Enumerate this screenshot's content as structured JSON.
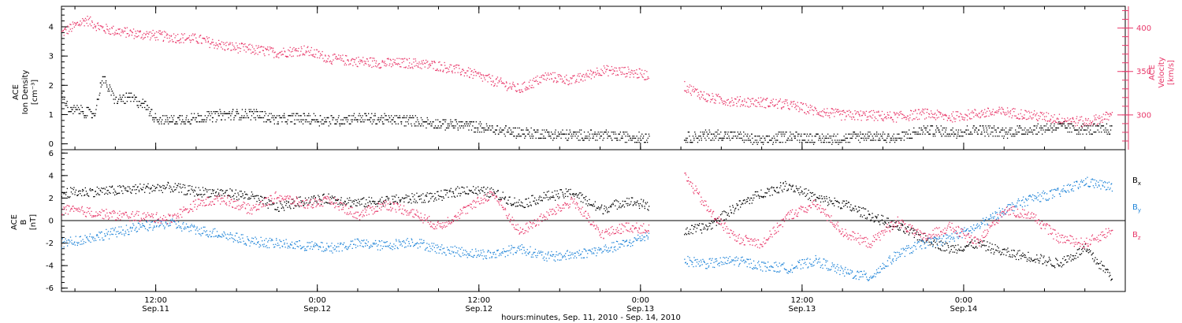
{
  "colors": {
    "black": "#000000",
    "red": "#e8386a",
    "blue": "#1f84d8"
  },
  "xaxis": {
    "label": "hours:minutes, Sep. 11, 2010 - Sep. 14, 2010",
    "ticks": [
      {
        "time": "12:00",
        "date": "Sep.11"
      },
      {
        "time": "0:00",
        "date": "Sep.12"
      },
      {
        "time": "12:00",
        "date": "Sep.12"
      },
      {
        "time": "0:00",
        "date": "Sep.13"
      },
      {
        "time": "12:00",
        "date": "Sep.13"
      },
      {
        "time": "0:00",
        "date": "Sep.14"
      }
    ]
  },
  "chart_data": [
    {
      "type": "scatter",
      "xrange": [
        "2010-09-11 05:00",
        "2010-09-14 12:00"
      ],
      "left_axis": {
        "label_line1": "ACE",
        "label_line2": "Ion Density",
        "label_line3": "[cm⁻³]",
        "ylim": [
          -0.2,
          4.7
        ],
        "ticks": [
          "0",
          "1",
          "2",
          "3",
          "4"
        ]
      },
      "right_axis": {
        "label_line1": "ACE",
        "label_line2": "Velocity",
        "label_line3": "[km/s]",
        "ylim": [
          260,
          425
        ],
        "ticks": [
          "300",
          "350",
          "400"
        ]
      },
      "series": [
        {
          "name": "",
          "axis": "left",
          "color": "#000000",
          "x_hours": [
            0,
            0.6,
            1.2,
            1.8,
            2.4,
            3,
            4,
            5,
            6,
            7,
            8,
            10,
            12,
            14,
            16,
            18,
            20,
            22,
            24,
            26,
            28,
            30,
            32,
            34,
            36,
            38,
            40,
            42,
            44,
            46,
            48,
            50,
            52,
            54,
            56,
            58,
            60,
            62,
            64,
            66,
            68,
            70,
            72,
            74,
            76,
            78
          ],
          "values": [
            1.8,
            1.1,
            1.2,
            1.1,
            1.0,
            2.3,
            1.5,
            1.6,
            1.4,
            0.9,
            0.8,
            0.9,
            1.0,
            1.05,
            0.85,
            0.9,
            0.8,
            0.9,
            0.85,
            0.8,
            0.7,
            0.65,
            0.5,
            0.4,
            0.35,
            0.3,
            0.3,
            0.25,
            0.25,
            0.2,
            0.3,
            0.3,
            0.1,
            0.3,
            0.2,
            0.2,
            0.3,
            0.2,
            0.5,
            0.4,
            0.5,
            0.4,
            0.5,
            0.6,
            0.5,
            0.5
          ]
        },
        {
          "name": "",
          "axis": "right",
          "color": "#e8386a",
          "x_hours": [
            0,
            0.6,
            1.2,
            1.8,
            2.4,
            3,
            4,
            5,
            6,
            7,
            8,
            10,
            12,
            14,
            16,
            18,
            20,
            22,
            24,
            26,
            28,
            30,
            32,
            34,
            36,
            38,
            40,
            42,
            44,
            46,
            48,
            50,
            52,
            54,
            56,
            58,
            60,
            62,
            64,
            66,
            68,
            70,
            72,
            74,
            76,
            78
          ],
          "values": [
            395,
            400,
            405,
            410,
            405,
            400,
            397,
            395,
            393,
            392,
            390,
            388,
            380,
            376,
            372,
            375,
            365,
            362,
            360,
            360,
            357,
            350,
            340,
            330,
            345,
            340,
            352,
            350,
            345,
            335,
            320,
            316,
            315,
            312,
            305,
            300,
            300,
            298,
            302,
            298,
            302,
            304,
            300,
            296,
            292,
            300
          ]
        }
      ],
      "gaps": [
        {
          "from_hour": 43.6,
          "to_hour": 46.2
        }
      ]
    },
    {
      "type": "scatter",
      "xrange": [
        "2010-09-11 05:00",
        "2010-09-14 12:00"
      ],
      "left_axis": {
        "label_line1": "ACE",
        "label_line2": "B",
        "label_line3": "[nT]",
        "ylim": [
          -6.3,
          6.3
        ],
        "ticks": [
          "-6",
          "-4",
          "-2",
          "0",
          "2",
          "4",
          "6"
        ]
      },
      "legend": {
        "placement": "right",
        "entries": [
          {
            "label": "B",
            "sub": "x",
            "color": "#000000"
          },
          {
            "label": "B",
            "sub": "y",
            "color": "#1f84d8"
          },
          {
            "label": "B",
            "sub": "z",
            "color": "#e8386a"
          }
        ]
      },
      "zero_line": true,
      "series": [
        {
          "name": "Bx",
          "color": "#000000",
          "x_hours": [
            0,
            2,
            4,
            6,
            8,
            10,
            12,
            14,
            16,
            18,
            20,
            22,
            24,
            26,
            28,
            30,
            32,
            34,
            36,
            38,
            40,
            42,
            44,
            46,
            48,
            50,
            52,
            54,
            56,
            58,
            60,
            62,
            64,
            66,
            68,
            70,
            72,
            74,
            76,
            78
          ],
          "values": [
            2.5,
            2.6,
            2.7,
            2.9,
            3.0,
            2.6,
            2.5,
            2.2,
            1.2,
            1.8,
            2.0,
            1.6,
            1.8,
            2.0,
            2.2,
            2.8,
            2.5,
            1.5,
            2.2,
            2.5,
            1.0,
            1.8,
            1.2,
            -1.0,
            -0.5,
            1.2,
            2.5,
            3.2,
            2.0,
            1.5,
            0.5,
            -0.5,
            -1.5,
            -2.5,
            -2.0,
            -2.8,
            -3.2,
            -3.8,
            -2.5,
            -5.0
          ]
        },
        {
          "name": "By",
          "color": "#1f84d8",
          "x_hours": [
            0,
            2,
            4,
            6,
            8,
            10,
            12,
            14,
            16,
            18,
            20,
            22,
            24,
            26,
            28,
            30,
            32,
            34,
            36,
            38,
            40,
            42,
            44,
            46,
            48,
            50,
            52,
            54,
            56,
            58,
            60,
            62,
            64,
            66,
            68,
            70,
            72,
            74,
            76,
            78
          ],
          "values": [
            -2.0,
            -1.5,
            -1.0,
            -0.5,
            -0.2,
            -0.8,
            -1.2,
            -1.8,
            -2.0,
            -2.2,
            -2.4,
            -2.0,
            -2.2,
            -1.8,
            -2.5,
            -2.8,
            -3.0,
            -2.4,
            -3.2,
            -3.0,
            -2.6,
            -2.0,
            -1.0,
            -3.5,
            -3.8,
            -3.5,
            -4.0,
            -4.2,
            -3.5,
            -4.5,
            -5.0,
            -3.0,
            -2.0,
            -1.5,
            -0.5,
            1.0,
            2.0,
            2.5,
            3.5,
            3.0
          ]
        },
        {
          "name": "Bz",
          "color": "#e8386a",
          "x_hours": [
            0,
            2,
            4,
            6,
            8,
            10,
            12,
            14,
            16,
            18,
            20,
            22,
            24,
            26,
            28,
            30,
            32,
            34,
            36,
            38,
            40,
            42,
            44,
            46,
            48,
            50,
            52,
            54,
            56,
            58,
            60,
            62,
            64,
            66,
            68,
            70,
            72,
            74,
            76,
            78
          ],
          "values": [
            1.0,
            0.8,
            0.5,
            0.4,
            0.2,
            1.5,
            2.0,
            1.0,
            2.2,
            1.5,
            1.8,
            0.5,
            1.5,
            0.8,
            -0.5,
            1.0,
            2.5,
            -1.0,
            0.5,
            1.8,
            -1.2,
            -0.5,
            -0.8,
            4.5,
            1.0,
            -1.5,
            -2.0,
            0.5,
            1.5,
            -1.0,
            -2.0,
            0.0,
            -1.5,
            -0.5,
            -2.0,
            1.0,
            0.5,
            -1.5,
            -2.0,
            -0.8
          ]
        }
      ],
      "gaps": [
        {
          "from_hour": 43.6,
          "to_hour": 46.2
        }
      ]
    }
  ]
}
